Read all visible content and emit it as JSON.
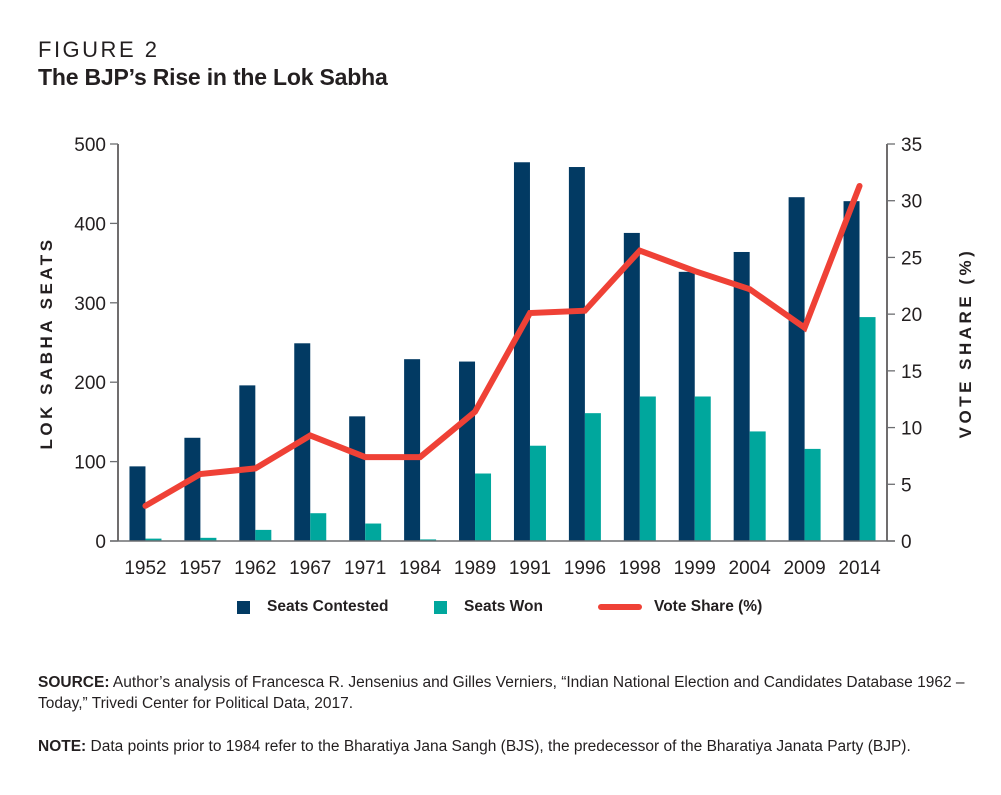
{
  "figure": {
    "label": "FIGURE 2",
    "title": "The BJP’s Rise in the Lok Sabha"
  },
  "colors": {
    "seats_contested": "#023a63",
    "seats_won": "#00a79d",
    "vote_share": "#ef4136",
    "axis": "#231f20"
  },
  "legend": {
    "items": [
      {
        "label": "Seats Contested",
        "type": "swatch",
        "color": "#023a63"
      },
      {
        "label": "Seats Won",
        "type": "swatch",
        "color": "#00a79d"
      },
      {
        "label": "Vote Share (%)",
        "type": "line",
        "color": "#ef4136"
      }
    ]
  },
  "footnotes": {
    "source_label": "SOURCE:",
    "source_text": " Author’s analysis of Francesca R. Jensenius and Gilles Verniers, “Indian National Election and Candidates Database 1962 – Today,” Trivedi Center for Political Data, 2017.",
    "note_label": "NOTE:",
    "note_text": " Data points prior to 1984 refer to the Bharatiya Jana Sangh (BJS), the predecessor of the Bharatiya Janata Party (BJP)."
  },
  "chart_data": {
    "type": "bar",
    "title": "The BJP’s Rise in the Lok Sabha",
    "xlabel": "",
    "ylabel": "LOK SABHA SEATS",
    "y2label": "VOTE SHARE (%)",
    "categories": [
      "1952",
      "1957",
      "1962",
      "1967",
      "1971",
      "1984",
      "1989",
      "1991",
      "1996",
      "1998",
      "1999",
      "2004",
      "2009",
      "2014"
    ],
    "ylim": [
      0,
      500
    ],
    "yticks": [
      0,
      100,
      200,
      300,
      400,
      500
    ],
    "y2lim": [
      0,
      35
    ],
    "y2ticks": [
      0,
      5,
      10,
      15,
      20,
      25,
      30,
      35
    ],
    "grid": false,
    "legend_position": "bottom",
    "series": [
      {
        "name": "Seats Contested",
        "type": "bar",
        "axis": "left",
        "values": [
          94,
          130,
          196,
          249,
          157,
          229,
          226,
          477,
          471,
          388,
          339,
          364,
          433,
          428
        ]
      },
      {
        "name": "Seats Won",
        "type": "bar",
        "axis": "left",
        "values": [
          3,
          4,
          14,
          35,
          22,
          2,
          85,
          120,
          161,
          182,
          182,
          138,
          116,
          282
        ]
      },
      {
        "name": "Vote Share (%)",
        "type": "line",
        "axis": "right",
        "values": [
          3.1,
          5.9,
          6.4,
          9.3,
          7.4,
          7.4,
          11.4,
          20.1,
          20.3,
          25.6,
          23.8,
          22.2,
          18.8,
          31.3
        ]
      }
    ]
  }
}
